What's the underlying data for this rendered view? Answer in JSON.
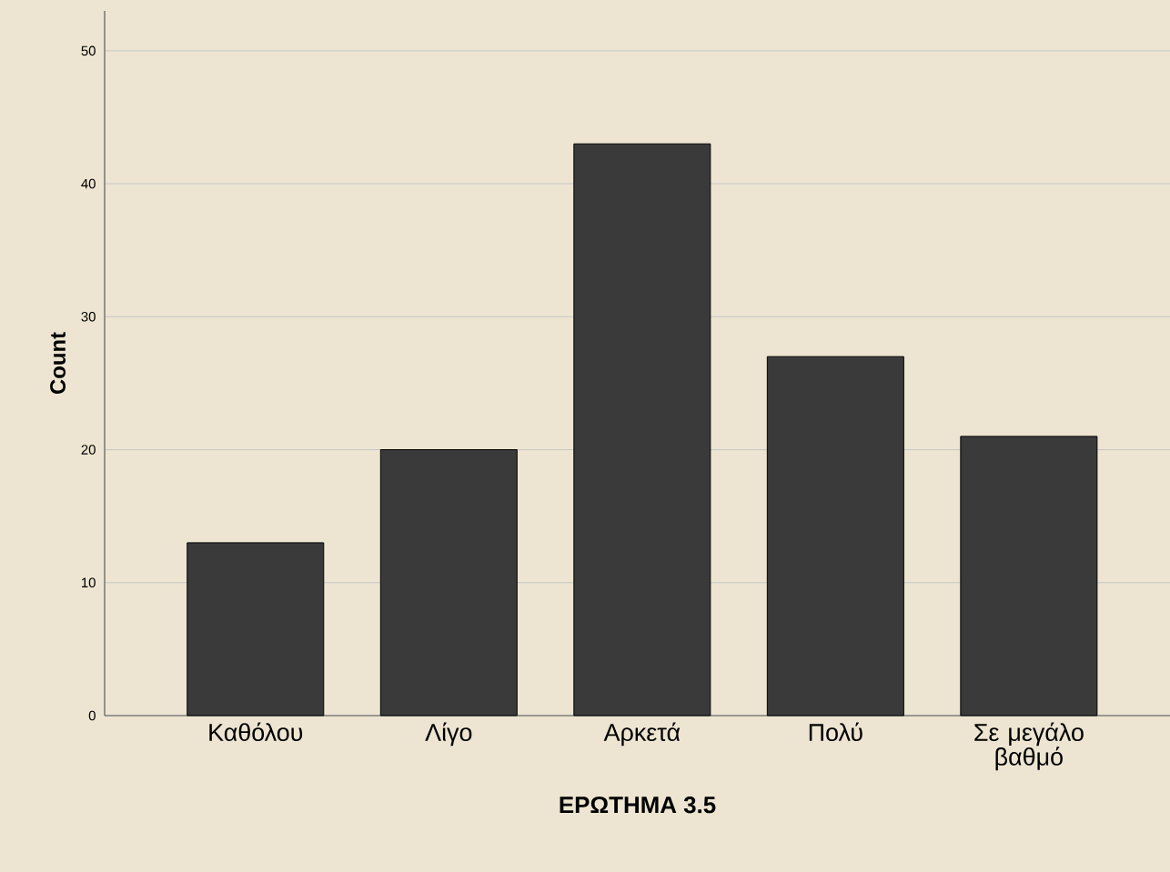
{
  "chart_data": {
    "type": "bar",
    "xlabel": "ΕΡΩΤΗΜΑ 3.5",
    "ylabel": "Count",
    "categories": [
      "Καθόλου",
      "Λίγο",
      "Αρκετά",
      "Πολύ",
      "Σε μεγάλο βαθμό"
    ],
    "values": [
      13,
      20,
      43,
      27,
      21
    ],
    "color": "#3a3a3a",
    "ylim": [
      0,
      53
    ],
    "yticks": [
      0,
      10,
      20,
      30,
      40,
      50
    ],
    "grid": "y"
  }
}
